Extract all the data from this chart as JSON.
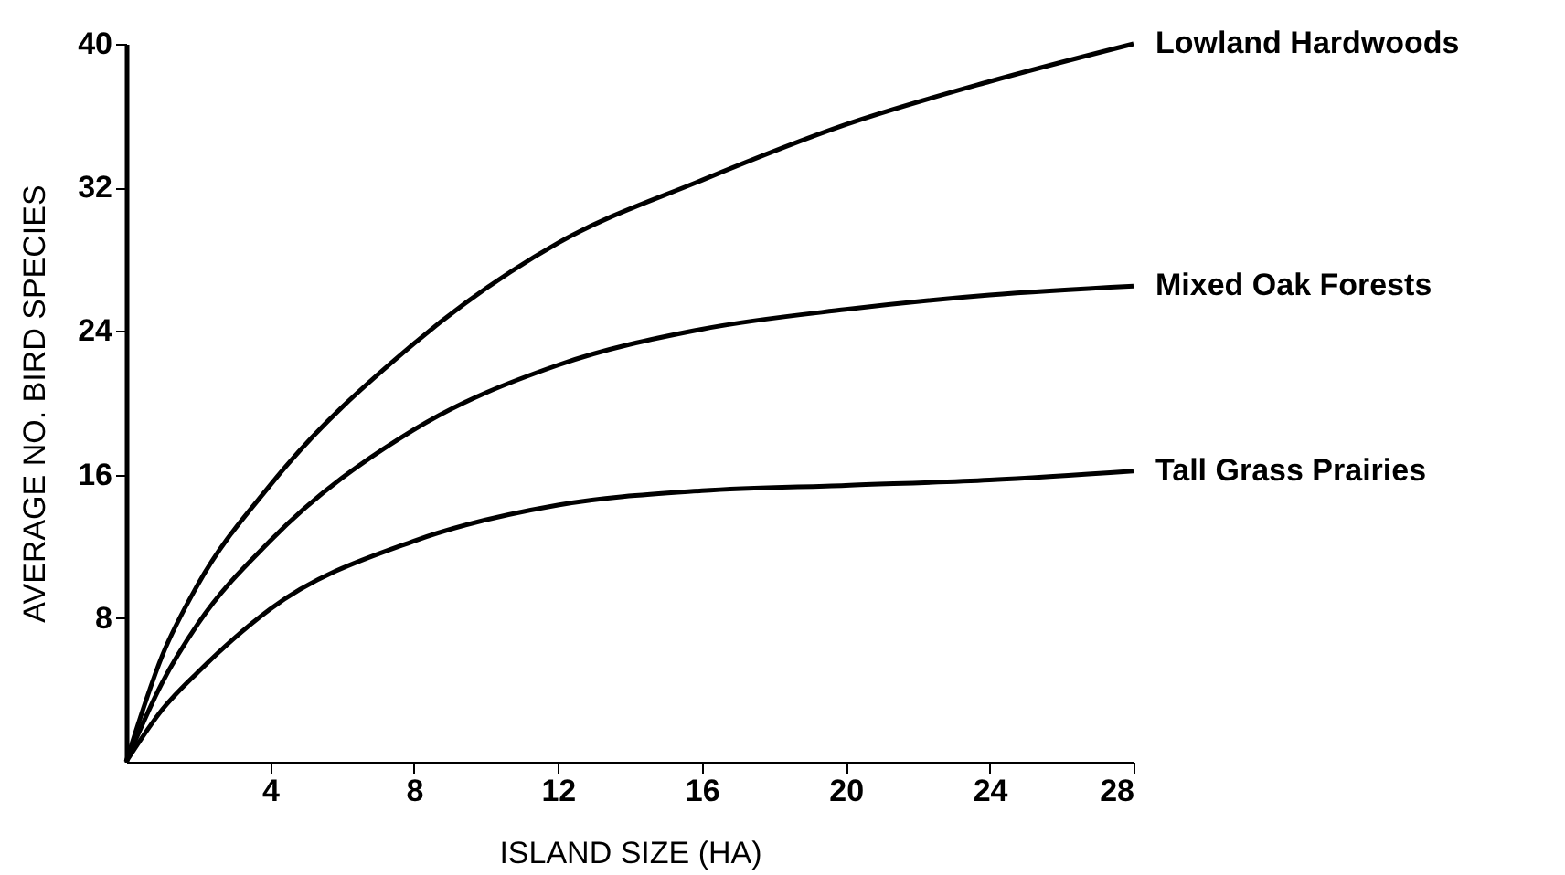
{
  "chart_data": {
    "type": "line",
    "xlabel": "ISLAND SIZE (HA)",
    "ylabel": "AVERAGE NO. BIRD SPECIES",
    "x": [
      0,
      1,
      2,
      4,
      8,
      12,
      16,
      20,
      24,
      28
    ],
    "series": [
      {
        "name": "Lowland Hardwoods",
        "color": "#000000",
        "values": [
          0,
          5.9,
          9.9,
          15.4,
          23.3,
          28.9,
          32.4,
          35.5,
          37.9,
          40
        ]
      },
      {
        "name": "Mixed Oak Forests",
        "color": "#000000",
        "values": [
          0,
          4.4,
          7.7,
          12.3,
          18.5,
          22.1,
          24.1,
          25.2,
          26,
          26.5
        ]
      },
      {
        "name": "Tall Grass Prairies",
        "color": "#000000",
        "values": [
          0,
          2.9,
          5,
          8.5,
          12.3,
          14.3,
          15.1,
          15.4,
          15.7,
          16.2
        ]
      }
    ],
    "xlim": [
      0,
      28
    ],
    "ylim": [
      0,
      40
    ],
    "xticks": [
      4,
      8,
      12,
      16,
      20,
      24,
      28
    ],
    "yticks": [
      8,
      16,
      24,
      32,
      40
    ],
    "grid": false,
    "legend": false,
    "marker": "none",
    "line_style": "solid"
  }
}
